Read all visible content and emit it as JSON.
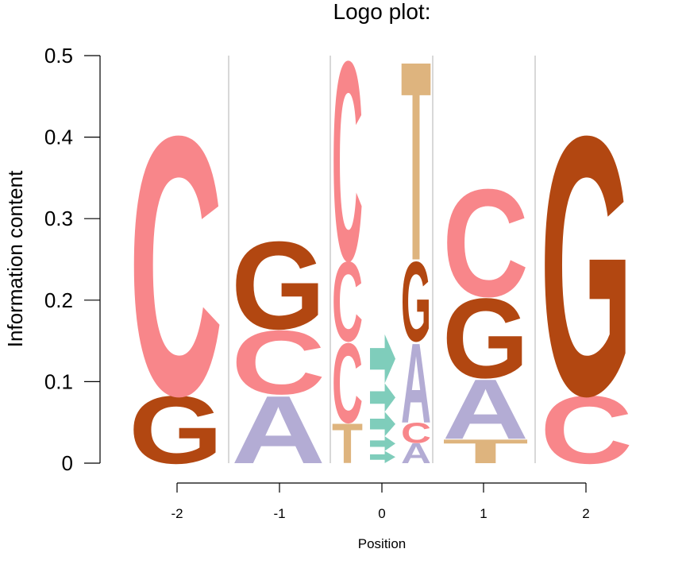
{
  "chart_data": {
    "type": "logo",
    "title": "Logo plot:",
    "xlabel": "Position",
    "ylabel": "Information content",
    "ylim": [
      0,
      0.5
    ],
    "yticks": [
      0,
      0.1,
      0.2,
      0.3,
      0.4,
      0.5
    ],
    "ytick_labels": [
      "0",
      "0.1",
      "0.2",
      "0.3",
      "0.4",
      "0.5"
    ],
    "xticks": [
      -2,
      -1,
      0,
      1,
      2
    ],
    "xtick_labels": [
      "-2",
      "-1",
      "0",
      "1",
      "2"
    ],
    "colors": {
      "C": "#F8868A",
      "G": "#B24711",
      "A": "#B3ACD4",
      "T": "#DEB47E",
      "arrow": "#7FCDBB",
      "gridline": "#BEBEBE"
    },
    "columns": [
      {
        "position": -2,
        "letters": [
          {
            "letter": "G",
            "value": 0.085
          },
          {
            "letter": "C",
            "value": 0.325
          }
        ]
      },
      {
        "position": -1,
        "letters": [
          {
            "letter": "A",
            "value": 0.085
          },
          {
            "letter": "C",
            "value": 0.08
          },
          {
            "letter": "G",
            "value": 0.11
          }
        ]
      },
      {
        "position": "0a",
        "letters": [
          {
            "letter": "T",
            "value": 0.05
          },
          {
            "letter": "C",
            "value": 0.1
          },
          {
            "letter": "C",
            "value": 0.1
          },
          {
            "letter": "C",
            "value": 0.25
          }
        ]
      },
      {
        "position": "0 (arrows)",
        "letters": [
          {
            "letter": "arrow",
            "value": 0.015
          },
          {
            "letter": "arrow",
            "value": 0.018
          },
          {
            "letter": "arrow",
            "value": 0.03
          },
          {
            "letter": "arrow",
            "value": 0.035
          },
          {
            "letter": "arrow",
            "value": 0.06
          }
        ]
      },
      {
        "position": "0b",
        "letters": [
          {
            "letter": "A",
            "value": 0.025
          },
          {
            "letter": "C",
            "value": 0.025
          },
          {
            "letter": "A",
            "value": 0.1
          },
          {
            "letter": "G",
            "value": 0.1
          },
          {
            "letter": "T",
            "value": 0.25
          }
        ]
      },
      {
        "position": 1,
        "letters": [
          {
            "letter": "T",
            "value": 0.03
          },
          {
            "letter": "A",
            "value": 0.075
          },
          {
            "letter": "G",
            "value": 0.1
          },
          {
            "letter": "C",
            "value": 0.135
          }
        ]
      },
      {
        "position": 2,
        "letters": [
          {
            "letter": "C",
            "value": 0.085
          },
          {
            "letter": "G",
            "value": 0.325
          }
        ]
      }
    ]
  }
}
